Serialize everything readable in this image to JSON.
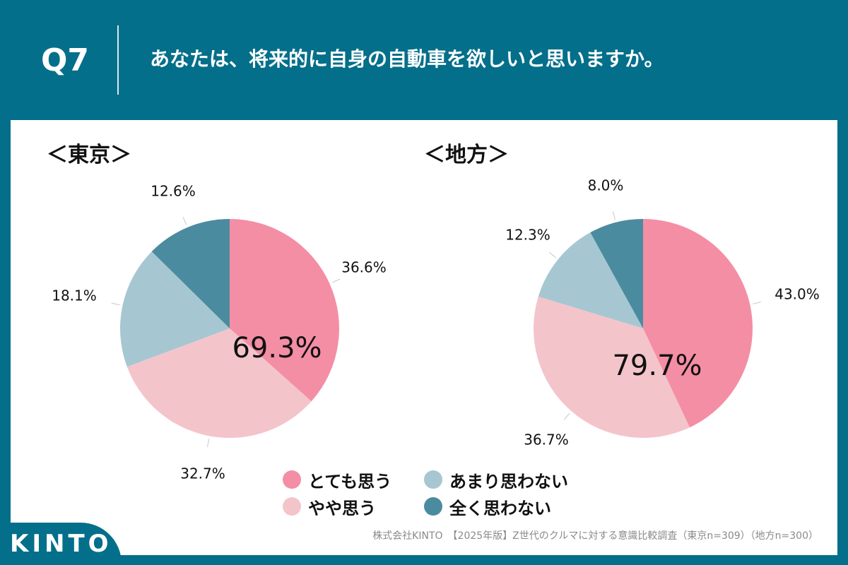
{
  "header": {
    "question": "Q7",
    "title": "あなたは、将来的に自身の自動車を欲しいと思いますか。"
  },
  "footer": {
    "source": "株式会社KINTO　【2025年版】Z世代のクルマに対する意識比較調査（東京n=309）（地方n=300）"
  },
  "logo": {
    "text": "KINTO"
  },
  "legend": [
    {
      "label": "とても思う",
      "color": "#f48ea5"
    },
    {
      "label": "やや思う",
      "color": "#f4c4cb"
    },
    {
      "label": "あまり思わない",
      "color": "#a6c7d1"
    },
    {
      "label": "全く思わない",
      "color": "#4b8ba0"
    }
  ],
  "chart_data": [
    {
      "type": "pie",
      "title": "＜東京＞",
      "categories": [
        "とても思う",
        "やや思う",
        "あまり思わない",
        "全く思わない"
      ],
      "values": [
        36.6,
        32.7,
        18.1,
        12.6
      ],
      "value_labels": [
        "36.6%",
        "32.7%",
        "18.1%",
        "12.6%"
      ],
      "center_label": "69.3%",
      "colors": [
        "#f48ea5",
        "#f4c4cb",
        "#a6c7d1",
        "#4b8ba0"
      ]
    },
    {
      "type": "pie",
      "title": "＜地方＞",
      "categories": [
        "とても思う",
        "やや思う",
        "あまり思わない",
        "全く思わない"
      ],
      "values": [
        43.0,
        36.7,
        12.3,
        8.0
      ],
      "value_labels": [
        "43.0%",
        "36.7%",
        "12.3%",
        "8.0%"
      ],
      "center_label": "79.7%",
      "colors": [
        "#f48ea5",
        "#f4c4cb",
        "#a6c7d1",
        "#4b8ba0"
      ]
    }
  ]
}
